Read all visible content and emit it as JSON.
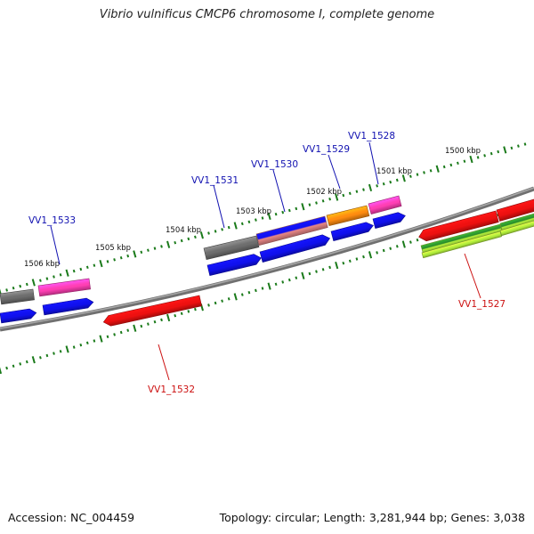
{
  "title": "Vibrio vulnificus CMCP6 chromosome I, complete genome",
  "footer": {
    "accession": "Accession: NC_004459",
    "summary": "Topology: circular; Length: 3,281,944 bp; Genes: 3,038"
  },
  "colors": {
    "tick": "#1a7a1a",
    "backbone": "#808080",
    "label_forward": "#1010b0",
    "label_reverse": "#cc1010",
    "gray": "#6e6e6e",
    "pink": "#ff3fb4",
    "blue": "#1010ee",
    "red": "#ee1010",
    "orange": "#ff8c10",
    "green": "#2a8a2a",
    "lime": "#b4f03c",
    "salmon": "#e98787"
  },
  "kbp_labels": [
    "1500 kbp",
    "1501 kbp",
    "1502 kbp",
    "1503 kbp",
    "1504 kbp",
    "1505 kbp",
    "1506 kbp"
  ],
  "gene_labels": [
    {
      "id": "l1533",
      "text": "VV1_1533",
      "strand": "forward"
    },
    {
      "id": "l1531",
      "text": "VV1_1531",
      "strand": "forward"
    },
    {
      "id": "l1530",
      "text": "VV1_1530",
      "strand": "forward"
    },
    {
      "id": "l1529",
      "text": "VV1_1529",
      "strand": "forward"
    },
    {
      "id": "l1528",
      "text": "VV1_1528",
      "strand": "forward"
    },
    {
      "id": "l1532",
      "text": "VV1_1532",
      "strand": "reverse"
    },
    {
      "id": "l1527",
      "text": "VV1_1527",
      "strand": "reverse"
    }
  ]
}
